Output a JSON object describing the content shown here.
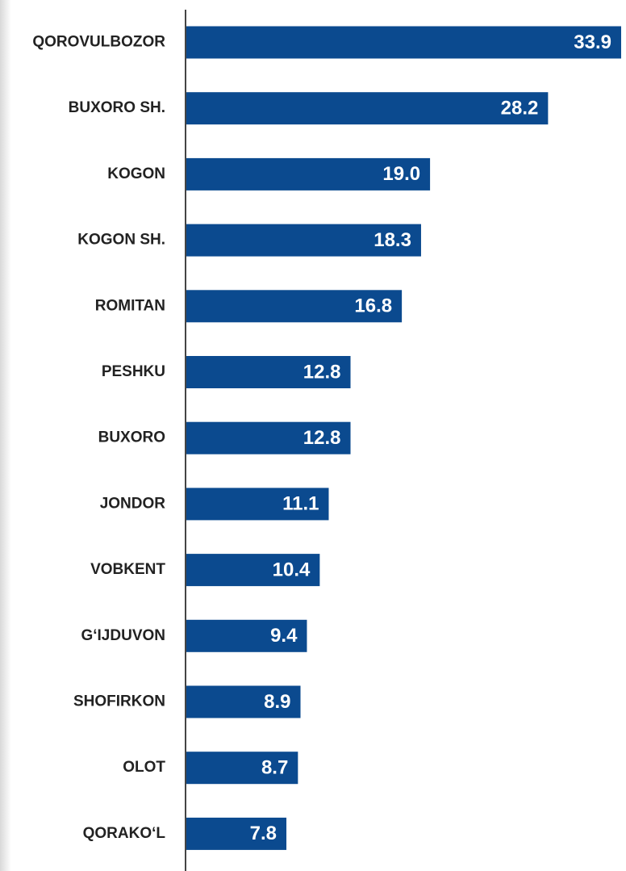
{
  "colors": {
    "bar": "#0b4a8f",
    "axis": "#444444",
    "category_text": "#222222",
    "value_text": "#ffffff"
  },
  "chart_data": {
    "type": "bar",
    "orientation": "horizontal",
    "categories": [
      "QOROVULBOZOR",
      "BUXORO SH.",
      "KOGON",
      "KOGON SH.",
      "ROMITAN",
      "PESHKU",
      "BUXORO",
      "JONDOR",
      "VOBKENT",
      "G‘IJDUVON",
      "SHOFIRKON",
      "OLOT",
      "QORAKO‘L"
    ],
    "values": [
      33.9,
      28.2,
      19.0,
      18.3,
      16.8,
      12.8,
      12.8,
      11.1,
      10.4,
      9.4,
      8.9,
      8.7,
      7.8
    ],
    "value_labels": [
      "33.9",
      "28.2",
      "19.0",
      "18.3",
      "16.8",
      "12.8",
      "12.8",
      "11.1",
      "10.4",
      "9.4",
      "8.9",
      "8.7",
      "7.8"
    ],
    "title": "",
    "xlabel": "",
    "ylabel": "",
    "xlim": [
      0,
      33.9
    ],
    "grid": false,
    "legend": "none"
  }
}
